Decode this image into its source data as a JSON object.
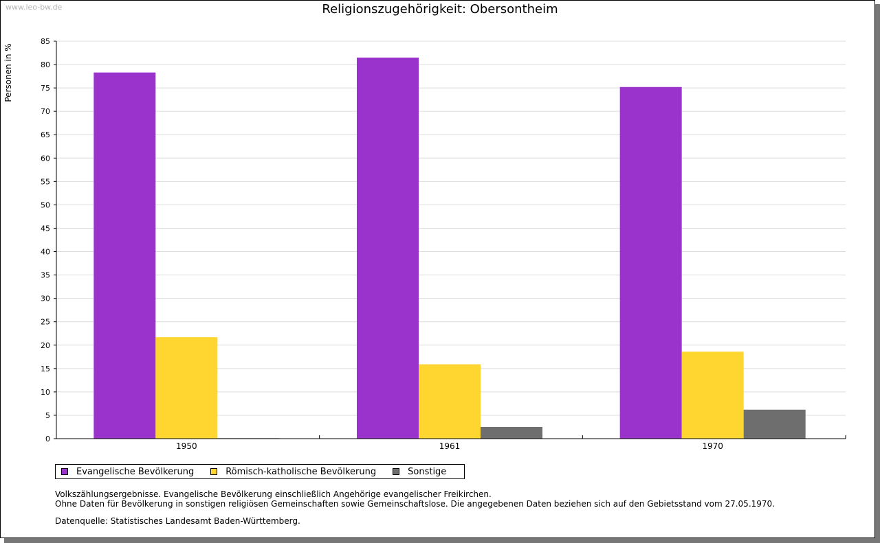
{
  "watermark": "www.leo-bw.de",
  "chart_data": {
    "type": "bar",
    "title": "Religionszugehörigkeit: Obersontheim",
    "ylabel": "Personen in %",
    "xlabel": "",
    "ylim": [
      0,
      85
    ],
    "ytick_step": 5,
    "grid": true,
    "legend_position": "bottom-left",
    "categories": [
      "1950",
      "1961",
      "1970"
    ],
    "series": [
      {
        "name": "Evangelische Bevölkerung",
        "color": "#9933cc",
        "values": [
          78.3,
          81.5,
          75.2
        ]
      },
      {
        "name": "Römisch-katholische Bevölkerung",
        "color": "#ffd630",
        "values": [
          21.7,
          15.9,
          18.6
        ]
      },
      {
        "name": "Sonstige",
        "color": "#6e6e6e",
        "values": [
          0.1,
          2.5,
          6.2
        ]
      }
    ]
  },
  "notes": {
    "line1": "Volkszählungsergebnisse. Evangelische Bevölkerung einschließlich Angehörige evangelischer Freikirchen.",
    "line2": "Ohne Daten für Bevölkerung in sonstigen religiösen Gemeinschaften sowie Gemeinschaftslose. Die angegebenen Daten beziehen sich auf den Gebietsstand vom 27.05.1970."
  },
  "source": "Datenquelle: Statistisches Landesamt Baden-Württemberg."
}
